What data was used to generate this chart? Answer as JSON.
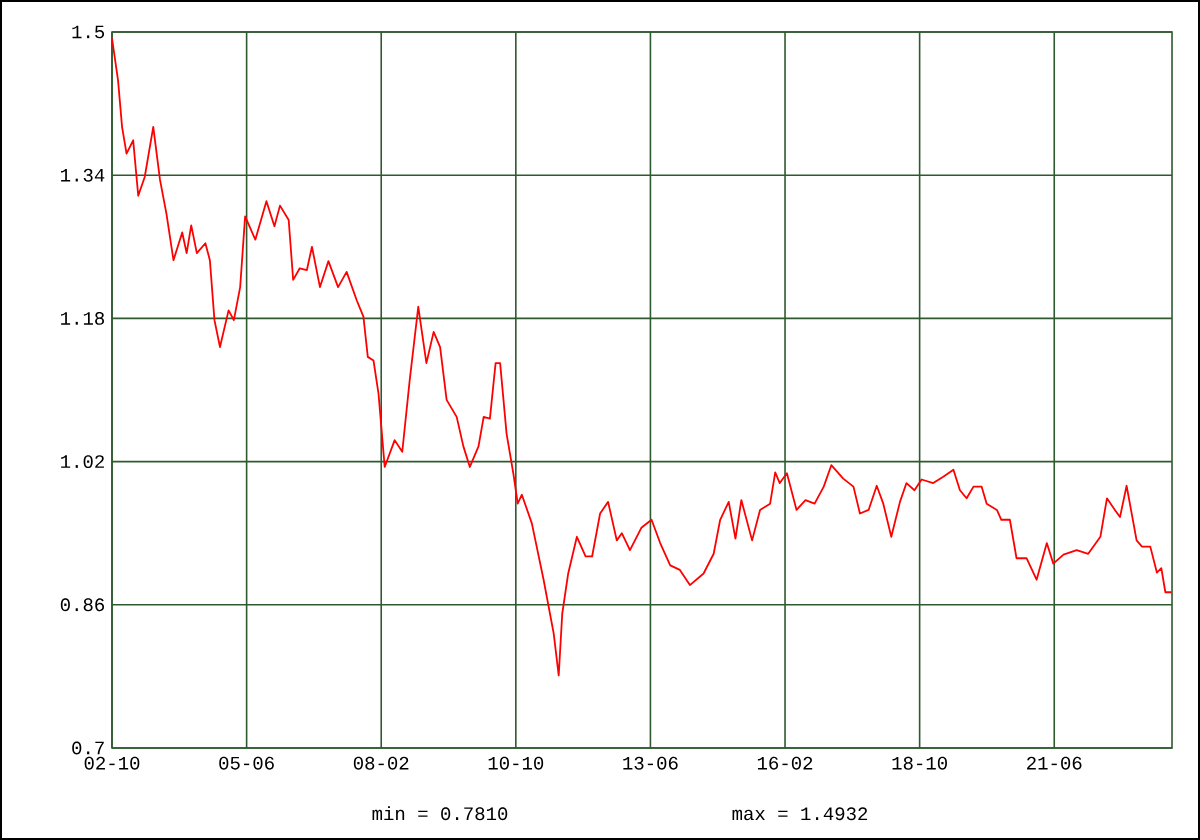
{
  "chart_data": {
    "type": "line",
    "x": [
      "2002-10-01",
      "2002-11-14",
      "2002-12-13",
      "2003-01-15",
      "2003-03-02",
      "2003-04-08",
      "2003-05-25",
      "2003-07-26",
      "2003-09-13",
      "2003-10-30",
      "2003-12-20",
      "2004-02-21",
      "2004-03-24",
      "2004-04-26",
      "2004-06-06",
      "2004-08-07",
      "2004-09-09",
      "2004-10-12",
      "2004-11-21",
      "2005-01-23",
      "2005-02-28",
      "2005-04-15",
      "2005-05-21",
      "2005-08-03",
      "2005-10-23",
      "2005-12-20",
      "2006-01-30",
      "2006-04-01",
      "2006-05-03",
      "2006-06-20",
      "2006-08-11",
      "2006-09-17",
      "2006-11-14",
      "2007-01-15",
      "2007-03-24",
      "2007-05-25",
      "2007-08-07",
      "2007-09-24",
      "2007-10-26",
      "2007-12-06",
      "2008-01-12",
      "2008-02-25",
      "2008-05-07",
      "2008-07-01",
      "2008-08-25",
      "2008-10-26",
      "2008-12-24",
      "2009-02-14",
      "2009-04-01",
      "2009-05-18",
      "2009-07-30",
      "2009-09-17",
      "2009-11-03",
      "2010-01-05",
      "2010-02-11",
      "2010-03-27",
      "2010-05-07",
      "2010-06-09",
      "2010-07-26",
      "2010-09-13",
      "2010-10-15",
      "2010-11-14",
      "2011-01-26",
      "2011-04-19",
      "2011-07-01",
      "2011-08-07",
      "2011-09-02",
      "2011-10-15",
      "2011-12-17",
      "2012-02-18",
      "2012-04-05",
      "2012-06-02",
      "2012-07-30",
      "2012-10-01",
      "2012-11-07",
      "2013-01-05",
      "2013-03-27",
      "2013-06-09",
      "2013-08-11",
      "2013-10-23",
      "2014-01-01",
      "2014-03-13",
      "2014-06-20",
      "2014-09-02",
      "2014-10-19",
      "2014-12-20",
      "2015-02-07",
      "2015-03-20",
      "2015-06-06",
      "2015-08-03",
      "2015-10-15",
      "2015-11-21",
      "2015-12-24",
      "2016-02-14",
      "2016-04-23",
      "2016-06-27",
      "2016-09-02",
      "2016-11-07",
      "2017-01-01",
      "2017-03-27",
      "2017-06-09",
      "2017-07-26",
      "2017-09-27",
      "2017-11-25",
      "2018-01-12",
      "2018-03-09",
      "2018-05-11",
      "2018-06-27",
      "2018-08-25",
      "2018-10-15",
      "2019-01-08",
      "2019-03-20",
      "2019-06-02",
      "2019-07-19",
      "2019-09-06",
      "2019-10-26",
      "2019-12-24",
      "2020-01-30",
      "2020-04-12",
      "2020-05-14",
      "2020-07-15",
      "2020-09-02",
      "2020-11-14",
      "2021-01-26",
      "2021-04-08",
      "2021-05-25",
      "2021-08-07",
      "2021-11-11",
      "2022-02-03",
      "2022-04-30",
      "2022-06-17",
      "2022-08-14",
      "2022-09-20",
      "2022-11-07",
      "2023-01-19",
      "2023-02-25",
      "2023-04-26",
      "2023-06-13",
      "2023-07-15",
      "2023-08-14",
      "2023-09-27"
    ],
    "series": [
      {
        "color": "#ff0000",
        "values": [
          1.493,
          1.446,
          1.394,
          1.364,
          1.379,
          1.317,
          1.338,
          1.394,
          1.335,
          1.297,
          1.245,
          1.276,
          1.253,
          1.284,
          1.253,
          1.264,
          1.245,
          1.178,
          1.148,
          1.189,
          1.178,
          1.215,
          1.294,
          1.268,
          1.311,
          1.283,
          1.306,
          1.29,
          1.223,
          1.236,
          1.234,
          1.26,
          1.215,
          1.244,
          1.215,
          1.232,
          1.2,
          1.182,
          1.137,
          1.133,
          1.096,
          1.014,
          1.044,
          1.031,
          1.111,
          1.193,
          1.13,
          1.165,
          1.148,
          1.089,
          1.07,
          1.037,
          1.014,
          1.037,
          1.07,
          1.068,
          1.13,
          1.13,
          1.051,
          1.007,
          0.973,
          0.983,
          0.951,
          0.888,
          0.828,
          0.781,
          0.85,
          0.895,
          0.936,
          0.914,
          0.914,
          0.962,
          0.975,
          0.932,
          0.94,
          0.921,
          0.946,
          0.955,
          0.929,
          0.904,
          0.899,
          0.882,
          0.895,
          0.917,
          0.955,
          0.975,
          0.934,
          0.977,
          0.932,
          0.966,
          0.973,
          1.008,
          0.996,
          1.007,
          0.966,
          0.977,
          0.973,
          0.992,
          1.016,
          1.001,
          0.992,
          0.962,
          0.966,
          0.993,
          0.973,
          0.936,
          0.975,
          0.996,
          0.988,
          1.0,
          0.996,
          1.003,
          1.011,
          0.988,
          0.979,
          0.992,
          0.992,
          0.973,
          0.966,
          0.955,
          0.955,
          0.912,
          0.912,
          0.888,
          0.929,
          0.906,
          0.916,
          0.921,
          0.917,
          0.936,
          0.979,
          0.966,
          0.958,
          0.993,
          0.932,
          0.925,
          0.925,
          0.896,
          0.901,
          0.874,
          0.874
        ]
      }
    ],
    "xlim": [
      "2002-10",
      "2023-10"
    ],
    "xticks": [
      {
        "value": "2002-10",
        "label": "02-10"
      },
      {
        "value": "2005-06",
        "label": "05-06"
      },
      {
        "value": "2008-02",
        "label": "08-02"
      },
      {
        "value": "2010-10",
        "label": "10-10"
      },
      {
        "value": "2013-06",
        "label": "13-06"
      },
      {
        "value": "2016-02",
        "label": "16-02"
      },
      {
        "value": "2018-10",
        "label": "18-10"
      },
      {
        "value": "2021-06",
        "label": "21-06"
      }
    ],
    "ylim": [
      0.7,
      1.5
    ],
    "yticks": [
      0.7,
      0.86,
      1.02,
      1.18,
      1.34,
      1.5
    ],
    "grid": true,
    "annotations": [
      "min = 0.7810",
      "max = 1.4932"
    ]
  }
}
